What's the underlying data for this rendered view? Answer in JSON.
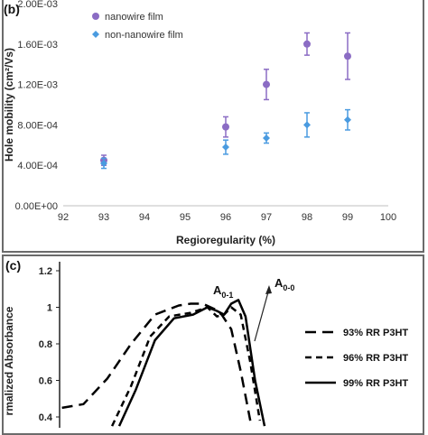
{
  "chart_data": [
    {
      "panel_label": "(b)",
      "type": "scatter",
      "xlabel": "Regioregularity (%)",
      "ylabel": "Hole mobility (cm²/Vs)",
      "xlim": [
        92,
        100
      ],
      "ylim": [
        0,
        0.002
      ],
      "x_ticks": [
        "92",
        "93",
        "94",
        "95",
        "96",
        "97",
        "98",
        "99",
        "100"
      ],
      "y_ticks": [
        "0.00E+00",
        "4.00E-04",
        "8.00E-04",
        "1.20E-03",
        "1.60E-03",
        "2.00E-03"
      ],
      "grid": false,
      "legend_position": "top-left",
      "series": [
        {
          "name": "nanowire film",
          "color": "#8b6cc4",
          "x": [
            93,
            96,
            97,
            98,
            99
          ],
          "y": [
            0.00045,
            0.00078,
            0.0012,
            0.0016,
            0.00148
          ],
          "err": [
            5e-05,
            0.0001,
            0.00015,
            0.00011,
            0.00023
          ]
        },
        {
          "name": "non-nanowire film",
          "color": "#4a9be0",
          "x": [
            93,
            96,
            97,
            98,
            99
          ],
          "y": [
            0.00042,
            0.00058,
            0.00067,
            0.0008,
            0.00085
          ],
          "err": [
            5e-05,
            7e-05,
            5e-05,
            0.00012,
            0.0001
          ]
        }
      ]
    },
    {
      "panel_label": "(c)",
      "type": "line",
      "ylabel": "rmalized Absorbance",
      "ylim": [
        0.35,
        1.25
      ],
      "y_ticks": [
        "1.2",
        "1",
        "0.8",
        "0.6",
        "0.4"
      ],
      "annotations": {
        "peak_01_base": "A",
        "peak_01_sub": "0-1",
        "peak_00_base": "A",
        "peak_00_sub": "0-0"
      },
      "legend_position": "right",
      "series": [
        {
          "name": "93% RR P3HT",
          "style": "dashed-long",
          "points": [
            [
              0.01,
              0.45
            ],
            [
              0.1,
              0.47
            ],
            [
              0.2,
              0.61
            ],
            [
              0.3,
              0.8
            ],
            [
              0.4,
              0.96
            ],
            [
              0.5,
              1.01
            ],
            [
              0.55,
              1.02
            ],
            [
              0.6,
              1.02
            ],
            [
              0.65,
              0.99
            ],
            [
              0.68,
              0.96
            ],
            [
              0.72,
              0.88
            ],
            [
              0.76,
              0.65
            ],
            [
              0.8,
              0.38
            ]
          ]
        },
        {
          "name": "96% RR P3HT",
          "style": "dashed-short",
          "points": [
            [
              0.22,
              0.35
            ],
            [
              0.3,
              0.57
            ],
            [
              0.38,
              0.84
            ],
            [
              0.46,
              0.95
            ],
            [
              0.55,
              0.97
            ],
            [
              0.62,
              1.0
            ],
            [
              0.66,
              0.95
            ],
            [
              0.69,
              0.96
            ],
            [
              0.72,
              1.0
            ],
            [
              0.76,
              0.96
            ],
            [
              0.8,
              0.7
            ],
            [
              0.84,
              0.38
            ]
          ]
        },
        {
          "name": "99% RR P3HT",
          "style": "solid",
          "points": [
            [
              0.25,
              0.35
            ],
            [
              0.32,
              0.55
            ],
            [
              0.4,
              0.82
            ],
            [
              0.48,
              0.94
            ],
            [
              0.56,
              0.96
            ],
            [
              0.62,
              1.0
            ],
            [
              0.66,
              0.98
            ],
            [
              0.69,
              0.96
            ],
            [
              0.72,
              1.02
            ],
            [
              0.75,
              1.04
            ],
            [
              0.78,
              0.95
            ],
            [
              0.82,
              0.6
            ],
            [
              0.86,
              0.35
            ]
          ]
        }
      ]
    }
  ]
}
